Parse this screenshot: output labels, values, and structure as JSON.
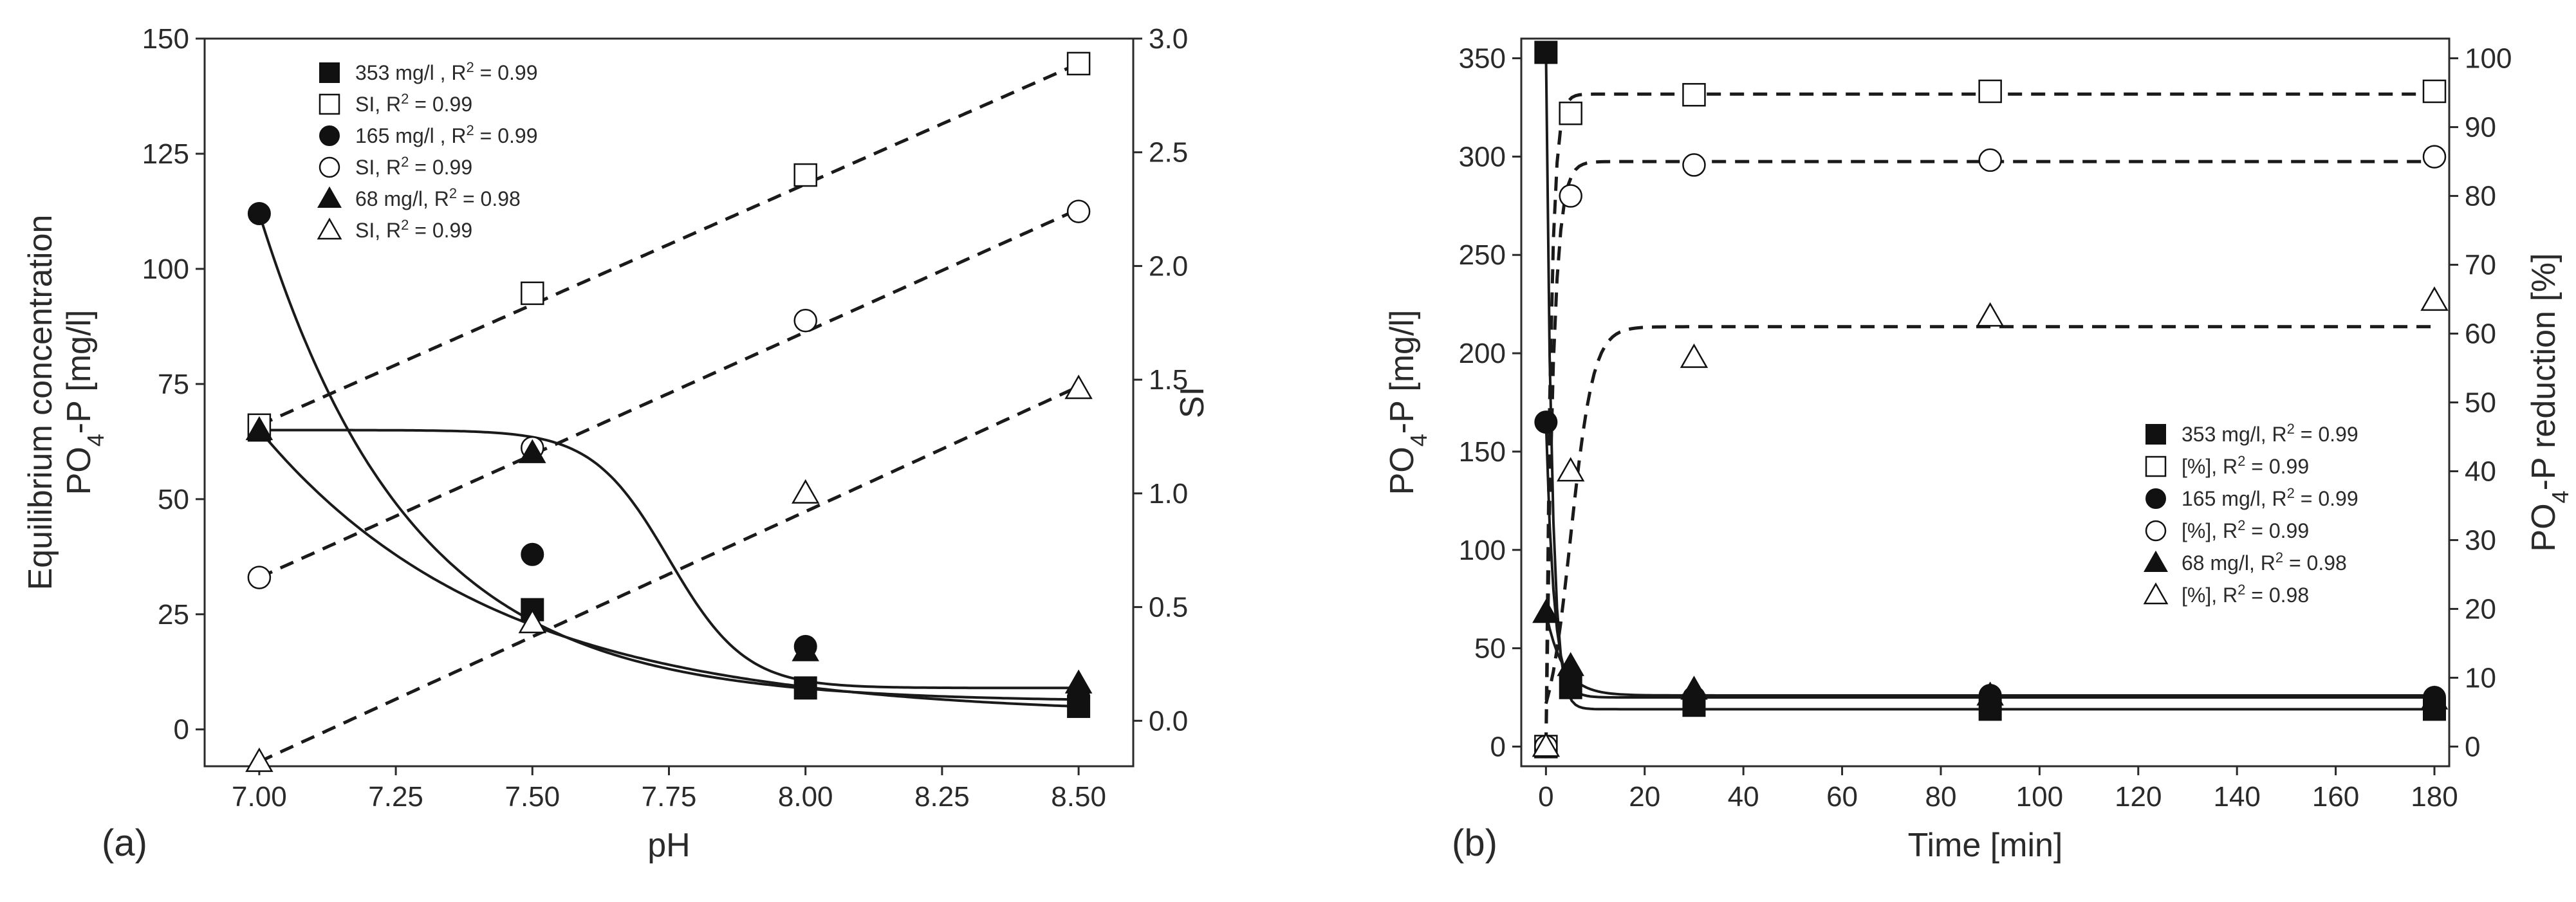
{
  "chart_data": [
    {
      "panel_label": "(a)",
      "type": "scatter",
      "xlabel": "pH",
      "ylabel_line1": "Equilibrium concentration",
      "ylabel_line2": "PO",
      "ylabel_sub": "4",
      "ylabel_line2_suffix": "-P [mg/l]",
      "y2label": "SI",
      "xlim": [
        6.9,
        8.6
      ],
      "ylim": [
        -8,
        150
      ],
      "y2lim": [
        -0.2,
        3.0
      ],
      "x_ticks": [
        7.0,
        7.25,
        7.5,
        7.75,
        8.0,
        8.25,
        8.5
      ],
      "x_tick_labels": [
        "7.00",
        "7.25",
        "7.50",
        "7.75",
        "8.00",
        "8.25",
        "8.50"
      ],
      "y_ticks": [
        0,
        25,
        50,
        75,
        100,
        125,
        150
      ],
      "y_tick_labels": [
        "0",
        "25",
        "50",
        "75",
        "100",
        "125",
        "150"
      ],
      "y2_ticks": [
        0.0,
        0.5,
        1.0,
        1.5,
        2.0,
        2.5,
        3.0
      ],
      "y2_tick_labels": [
        "0.0",
        "0.5",
        "1.0",
        "1.5",
        "2.0",
        "2.5",
        "3.0"
      ],
      "series": [
        {
          "name": "353 mg/l",
          "axis": "left",
          "marker": "square-filled",
          "x": [
            7.0,
            7.5,
            8.0,
            8.5
          ],
          "y": [
            65,
            26,
            9,
            5
          ]
        },
        {
          "name": "SI",
          "axis": "right",
          "marker": "square-open",
          "x": [
            7.0,
            7.5,
            8.0,
            8.5
          ],
          "y": [
            1.3,
            1.88,
            2.4,
            2.89
          ]
        },
        {
          "name": "165 mg/l",
          "axis": "left",
          "marker": "circle-filled",
          "x": [
            7.0,
            7.5,
            8.0,
            8.5
          ],
          "y": [
            112,
            38,
            18,
            7
          ]
        },
        {
          "name": "SI",
          "axis": "right",
          "marker": "circle-open",
          "x": [
            7.0,
            7.5,
            8.0,
            8.5
          ],
          "y": [
            0.63,
            1.2,
            1.76,
            2.24
          ]
        },
        {
          "name": "68 mg/l",
          "axis": "left",
          "marker": "triangle-filled",
          "x": [
            7.0,
            7.5,
            8.0,
            8.5
          ],
          "y": [
            65,
            60,
            17,
            10
          ]
        },
        {
          "name": "SI",
          "axis": "right",
          "marker": "triangle-open",
          "x": [
            7.0,
            7.5,
            8.0,
            8.5
          ],
          "y": [
            -0.18,
            0.43,
            1.0,
            1.46
          ]
        }
      ],
      "legend": [
        {
          "marker": "square-filled",
          "label": "353 mg/l  , R",
          "sup": "2",
          "suffix": " = 0.99"
        },
        {
          "marker": "square-open",
          "label": "SI, R",
          "sup": "2",
          "suffix": " = 0.99"
        },
        {
          "marker": "circle-filled",
          "label": "165 mg/l  , R",
          "sup": "2",
          "suffix": " = 0.99"
        },
        {
          "marker": "circle-open",
          "label": "SI, R",
          "sup": "2",
          "suffix": " = 0.99"
        },
        {
          "marker": "triangle-filled",
          "label": "68 mg/l, R",
          "sup": "2",
          "suffix": " = 0.98"
        },
        {
          "marker": "triangle-open",
          "label": "SI, R",
          "sup": "2",
          "suffix": " = 0.99"
        }
      ]
    },
    {
      "panel_label": "(b)",
      "type": "scatter",
      "xlabel": "Time [min]",
      "ylabel_line2": "PO",
      "ylabel_sub": "4",
      "ylabel_line2_suffix": "-P [mg/l]",
      "y2label_prefix": "PO",
      "y2label_sub": "4",
      "y2label_suffix": "-P reduction [%]",
      "xlim": [
        -5,
        183
      ],
      "ylim": [
        -10,
        360
      ],
      "y2lim": [
        -2.86,
        102.86
      ],
      "x_ticks": [
        0,
        20,
        40,
        60,
        80,
        100,
        120,
        140,
        160,
        180
      ],
      "x_tick_labels": [
        "0",
        "20",
        "40",
        "60",
        "80",
        "100",
        "120",
        "140",
        "160",
        "180"
      ],
      "y_ticks": [
        0,
        50,
        100,
        150,
        200,
        250,
        300,
        350
      ],
      "y_tick_labels": [
        "0",
        "50",
        "100",
        "150",
        "200",
        "250",
        "300",
        "350"
      ],
      "y2_ticks": [
        0,
        10,
        20,
        30,
        40,
        50,
        60,
        70,
        80,
        90,
        100
      ],
      "y2_tick_labels": [
        "0",
        "10",
        "20",
        "30",
        "40",
        "50",
        "60",
        "70",
        "80",
        "90",
        "100"
      ],
      "series": [
        {
          "name": "353 mg/l",
          "axis": "left",
          "marker": "square-filled",
          "x": [
            0,
            5,
            30,
            90,
            180
          ],
          "y": [
            353,
            30,
            21,
            19,
            19
          ]
        },
        {
          "name": "[%]",
          "axis": "right",
          "marker": "square-open",
          "x": [
            0,
            5,
            30,
            90,
            180
          ],
          "y": [
            0,
            92,
            94.7,
            95.2,
            95.2
          ]
        },
        {
          "name": "165 mg/l",
          "axis": "left",
          "marker": "circle-filled",
          "x": [
            0,
            5,
            30,
            90,
            180
          ],
          "y": [
            165,
            36,
            25,
            26,
            25
          ]
        },
        {
          "name": "[%]",
          "axis": "right",
          "marker": "circle-open",
          "x": [
            0,
            5,
            30,
            90,
            180
          ],
          "y": [
            0,
            80,
            84.5,
            85.2,
            85.7
          ]
        },
        {
          "name": "68 mg/l",
          "axis": "left",
          "marker": "triangle-filled",
          "x": [
            0,
            5,
            30,
            90,
            180
          ],
          "y": [
            68,
            41,
            29,
            26,
            24
          ]
        },
        {
          "name": "[%]",
          "axis": "right",
          "marker": "triangle-open",
          "x": [
            0,
            5,
            30,
            90,
            180
          ],
          "y": [
            0,
            40,
            56.5,
            62.5,
            64.8
          ]
        }
      ],
      "legend": [
        {
          "marker": "square-filled",
          "label": "353 mg/l, R",
          "sup": "2",
          "suffix": " = 0.99"
        },
        {
          "marker": "square-open",
          "label": "[%], R",
          "sup": "2",
          "suffix": " = 0.99"
        },
        {
          "marker": "circle-filled",
          "label": "165 mg/l, R",
          "sup": "2",
          "suffix": " = 0.99"
        },
        {
          "marker": "circle-open",
          "label": "[%], R",
          "sup": "2",
          "suffix": " = 0.99"
        },
        {
          "marker": "triangle-filled",
          "label": "68 mg/l, R",
          "sup": "2",
          "suffix": " = 0.98"
        },
        {
          "marker": "triangle-open",
          "label": "[%], R",
          "sup": "2",
          "suffix": " = 0.98"
        }
      ]
    }
  ]
}
